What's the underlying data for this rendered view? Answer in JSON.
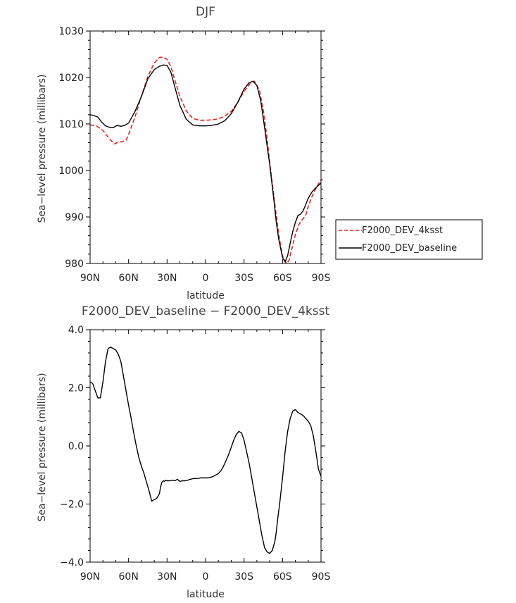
{
  "chart_data": [
    {
      "type": "line",
      "title": "DJF",
      "xlabel": "latitude",
      "ylabel": "Sea−level pressure (millibars)",
      "xlim": [
        90,
        -90
      ],
      "ylim": [
        980,
        1030
      ],
      "xticks": [
        90,
        60,
        30,
        0,
        -30,
        -60,
        -90
      ],
      "xtick_labels": [
        "90N",
        "60N",
        "30N",
        "0",
        "30S",
        "60S",
        "90S"
      ],
      "yticks": [
        980,
        990,
        1000,
        1010,
        1020,
        1030
      ],
      "ytick_labels": [
        "980",
        "990",
        "1000",
        "1010",
        "1020",
        "1030"
      ],
      "legend_position": "right",
      "series": [
        {
          "name": "F2000_DEV_4ksst",
          "color": "#e8231f",
          "dash": "dashed",
          "x": [
            90,
            85,
            80,
            75,
            71,
            68,
            65,
            62,
            60,
            55,
            50,
            45,
            40,
            36,
            33,
            30,
            27,
            24,
            20,
            15,
            10,
            5,
            0,
            -5,
            -10,
            -15,
            -20,
            -25,
            -30,
            -35,
            -38,
            -42,
            -45,
            -48,
            -50,
            -53,
            -55,
            -57,
            -60,
            -63,
            -65,
            -67,
            -70,
            -73,
            -75,
            -78,
            -80,
            -83,
            -85,
            -88,
            -90
          ],
          "y": [
            1009.8,
            1009.6,
            1008.6,
            1006.8,
            1005.7,
            1006.1,
            1006.2,
            1006.5,
            1007.8,
            1011.5,
            1016.0,
            1020.2,
            1023.1,
            1024.3,
            1024.4,
            1023.9,
            1022.3,
            1019.5,
            1015.9,
            1012.8,
            1011.2,
            1010.8,
            1010.8,
            1010.9,
            1011.1,
            1011.7,
            1012.7,
            1014.6,
            1017.0,
            1018.8,
            1019.2,
            1017.3,
            1013.0,
            1006.8,
            1001.8,
            995.0,
            990.6,
            986.3,
            981.6,
            980.0,
            980.6,
            982.9,
            986.2,
            988.5,
            989.3,
            990.3,
            992.2,
            994.4,
            995.6,
            997.1,
            998.0
          ]
        },
        {
          "name": "F2000_DEV_baseline",
          "color": "#000000",
          "dash": "solid",
          "x": [
            90,
            87,
            84,
            81,
            78,
            75,
            72,
            69,
            66,
            63,
            60,
            55,
            50,
            45,
            40,
            36,
            33,
            30,
            27,
            24,
            20,
            15,
            10,
            5,
            0,
            -5,
            -10,
            -15,
            -20,
            -25,
            -30,
            -34,
            -37,
            -40,
            -43,
            -46,
            -50,
            -53,
            -55,
            -57,
            -60,
            -62,
            -64,
            -66,
            -68,
            -70,
            -72,
            -74,
            -76,
            -78,
            -80,
            -83,
            -86,
            -90
          ],
          "y": [
            1012.0,
            1011.8,
            1011.5,
            1010.4,
            1009.6,
            1009.3,
            1009.2,
            1009.7,
            1009.5,
            1009.7,
            1010.2,
            1012.7,
            1015.9,
            1019.7,
            1021.7,
            1022.4,
            1022.7,
            1022.6,
            1021.1,
            1018.0,
            1014.0,
            1011.0,
            1009.8,
            1009.6,
            1009.6,
            1009.7,
            1010.0,
            1010.7,
            1012.2,
            1014.6,
            1017.5,
            1018.9,
            1019.2,
            1018.3,
            1015.0,
            1009.3,
            1001.3,
            994.3,
            989.2,
            985.3,
            981.3,
            980.3,
            981.7,
            984.4,
            986.9,
            988.8,
            990.3,
            990.6,
            991.3,
            992.6,
            994.0,
            995.4,
            996.3,
            997.3
          ]
        }
      ]
    },
    {
      "type": "line",
      "title": "F2000_DEV_baseline − F2000_DEV_4ksst",
      "xlabel": "latitude",
      "ylabel": "Sea−level pressure (millibars)",
      "xlim": [
        90,
        -90
      ],
      "ylim": [
        -4.0,
        4.0
      ],
      "xticks": [
        90,
        60,
        30,
        0,
        -30,
        -60,
        -90
      ],
      "xtick_labels": [
        "90N",
        "60N",
        "30N",
        "0",
        "30S",
        "60S",
        "90S"
      ],
      "yticks": [
        -4.0,
        -2.0,
        0.0,
        2.0,
        4.0
      ],
      "ytick_labels": [
        "−4.0",
        "−2.0",
        "0.0",
        "2.0",
        "4.0"
      ],
      "series": [
        {
          "color": "#000000",
          "dash": "solid",
          "x": [
            90,
            88,
            86,
            84,
            82,
            80,
            78,
            76,
            74,
            72,
            70,
            68,
            66,
            64,
            62,
            60,
            58,
            56,
            54,
            52,
            50,
            48,
            46,
            44,
            42,
            40,
            38,
            36,
            35,
            34,
            33,
            32,
            31,
            30,
            28,
            26,
            24,
            22,
            20,
            18,
            16,
            14,
            12,
            10,
            8,
            6,
            4,
            2,
            0,
            -2,
            -4,
            -6,
            -8,
            -10,
            -12,
            -14,
            -16,
            -18,
            -20,
            -22,
            -24,
            -26,
            -28,
            -30,
            -32,
            -34,
            -36,
            -38,
            -40,
            -42,
            -44,
            -46,
            -48,
            -50,
            -52,
            -54,
            -55,
            -56,
            -58,
            -60,
            -62,
            -64,
            -66,
            -68,
            -70,
            -72,
            -74,
            -76,
            -78,
            -80,
            -82,
            -84,
            -86,
            -88,
            -90
          ],
          "y": [
            2.2,
            2.15,
            1.9,
            1.65,
            1.65,
            2.2,
            2.9,
            3.35,
            3.4,
            3.35,
            3.3,
            3.15,
            2.9,
            2.4,
            1.9,
            1.4,
            0.95,
            0.45,
            0.0,
            -0.4,
            -0.7,
            -0.95,
            -1.25,
            -1.55,
            -1.9,
            -1.85,
            -1.8,
            -1.65,
            -1.4,
            -1.25,
            -1.2,
            -1.22,
            -1.18,
            -1.2,
            -1.2,
            -1.18,
            -1.2,
            -1.15,
            -1.22,
            -1.2,
            -1.2,
            -1.18,
            -1.15,
            -1.13,
            -1.12,
            -1.12,
            -1.1,
            -1.1,
            -1.1,
            -1.1,
            -1.08,
            -1.05,
            -1.0,
            -0.95,
            -0.85,
            -0.7,
            -0.5,
            -0.3,
            -0.05,
            0.2,
            0.4,
            0.5,
            0.45,
            0.2,
            -0.2,
            -0.6,
            -1.1,
            -1.6,
            -2.1,
            -2.6,
            -3.1,
            -3.5,
            -3.65,
            -3.7,
            -3.6,
            -3.3,
            -3.0,
            -2.6,
            -1.9,
            -1.1,
            -0.2,
            0.5,
            0.95,
            1.2,
            1.25,
            1.15,
            1.1,
            1.05,
            0.95,
            0.85,
            0.7,
            0.35,
            -0.2,
            -0.8,
            -1.05
          ]
        }
      ]
    }
  ]
}
